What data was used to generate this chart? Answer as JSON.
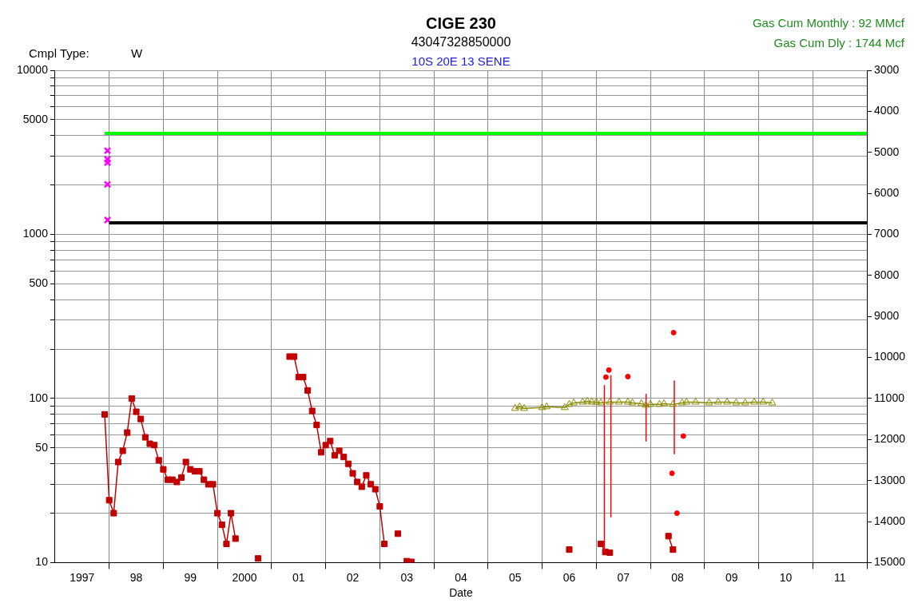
{
  "chart_data": {
    "type": "line",
    "title": "CIGE 230",
    "subtitle": "43047328850000",
    "xlabel": "Date",
    "annotations": [
      "10S 20E 13 SENE",
      "Cmpl Type:",
      "W",
      "Gas Cum Monthly : 92 MMcf",
      "Gas Cum Dly : 1744 Mcf"
    ],
    "xlim": [
      "1997",
      "2012"
    ],
    "xticks": [
      {
        "value": "1997-07",
        "label": "1997"
      },
      {
        "value": "1998",
        "label": null
      },
      {
        "value": "1998-07",
        "label": "98"
      },
      {
        "value": "1999",
        "label": null
      },
      {
        "value": "1999-07",
        "label": "99"
      },
      {
        "value": "2000",
        "label": null
      },
      {
        "value": "2000-07",
        "label": "2000"
      },
      {
        "value": "2001",
        "label": null
      },
      {
        "value": "2001-07",
        "label": "01"
      },
      {
        "value": "2002",
        "label": null
      },
      {
        "value": "2002-07",
        "label": "02"
      },
      {
        "value": "2003",
        "label": null
      },
      {
        "value": "2003-07",
        "label": "03"
      },
      {
        "value": "2004",
        "label": null
      },
      {
        "value": "2004-07",
        "label": "04"
      },
      {
        "value": "2005",
        "label": null
      },
      {
        "value": "2005-07",
        "label": "05"
      },
      {
        "value": "2006",
        "label": null
      },
      {
        "value": "2006-07",
        "label": "06"
      },
      {
        "value": "2007",
        "label": null
      },
      {
        "value": "2007-07",
        "label": "07"
      },
      {
        "value": "2008",
        "label": null
      },
      {
        "value": "2008-07",
        "label": "08"
      },
      {
        "value": "2009",
        "label": null
      },
      {
        "value": "2009-07",
        "label": "09"
      },
      {
        "value": "2010",
        "label": null
      },
      {
        "value": "2010-07",
        "label": "10"
      },
      {
        "value": "2011",
        "label": null
      },
      {
        "value": "2011-07",
        "label": "11"
      },
      {
        "value": "2012",
        "label": null
      }
    ],
    "ylim": [
      10,
      10000
    ],
    "yticks": [
      10,
      {
        "value": 20,
        "label": null
      },
      {
        "value": 30,
        "label": null
      },
      {
        "value": 40,
        "label": null
      },
      50,
      {
        "value": 60,
        "label": null
      },
      {
        "value": 70,
        "label": null
      },
      {
        "value": 80,
        "label": null
      },
      {
        "value": 90,
        "label": null
      },
      100,
      {
        "value": 200,
        "label": null
      },
      {
        "value": 300,
        "label": null
      },
      {
        "value": 400,
        "label": null
      },
      500,
      {
        "value": 600,
        "label": null
      },
      {
        "value": 700,
        "label": null
      },
      {
        "value": 800,
        "label": null
      },
      {
        "value": 900,
        "label": null
      },
      1000,
      {
        "value": 2000,
        "label": null
      },
      {
        "value": 3000,
        "label": null
      },
      {
        "value": 4000,
        "label": null
      },
      5000,
      {
        "value": 6000,
        "label": null
      },
      {
        "value": 7000,
        "label": null
      },
      {
        "value": 8000,
        "label": null
      },
      {
        "value": 9000,
        "label": null
      },
      10000
    ],
    "y2lim": [
      15000,
      3000
    ],
    "y2ticks": [
      3000,
      4000,
      5000,
      6000,
      7000,
      8000,
      9000,
      10000,
      11000,
      12000,
      13000,
      14000,
      15000
    ],
    "log": "y",
    "grid": true,
    "legend": false,
    "series": [
      {
        "type": "line",
        "axis": "y2",
        "marker": "none",
        "color": "#00ff00",
        "x": [
          "1997-12",
          "2012"
        ],
        "values": [
          4540,
          4540
        ]
      },
      {
        "type": "line",
        "axis": "y2",
        "marker": "none",
        "color": "#000000",
        "x": [
          "1998-01",
          "2012"
        ],
        "values": [
          6720,
          6720
        ]
      },
      {
        "type": "scatter",
        "axis": "y2",
        "marker": "cross",
        "color": "#ff00ff",
        "x": [
          "1997-12-20",
          "1997-12-20",
          "1997-12-20",
          "1997-12-20",
          "1997-12-20"
        ],
        "values": [
          4960,
          5170,
          5250,
          5780,
          6650
        ]
      },
      {
        "type": "line",
        "marker": "triangle",
        "color": "#8b8b00",
        "x": [
          "2005-07",
          "2005-08",
          "2005-09",
          "2006-01",
          "2006-02",
          "2006-06",
          "2006-07",
          "2006-08",
          "2006-10",
          "2006-11",
          "2006-12",
          "2007-01",
          "2007-02",
          "2007-04",
          "2007-06",
          "2007-08",
          "2007-09",
          "2007-11",
          "2007-12",
          "2008-01",
          "2008-03",
          "2008-04",
          "2008-06",
          "2008-08",
          "2008-09",
          "2008-11",
          "2009-02",
          "2009-04",
          "2009-06",
          "2009-08",
          "2009-10",
          "2009-12",
          "2010-02",
          "2010-04"
        ],
        "values": [
          87,
          89,
          87,
          88,
          89,
          88,
          92,
          94,
          95,
          96,
          95,
          95,
          94,
          95,
          95,
          95,
          94,
          93,
          91,
          92,
          92,
          93,
          92,
          94,
          95,
          95,
          94,
          95,
          95,
          94,
          94,
          95,
          95,
          94
        ]
      },
      {
        "type": "line",
        "marker": "none",
        "color": "#ff0000",
        "x": [
          "2007-02-25",
          "2007-02-25",
          "2007-03-20",
          "2007-04-08",
          "2007-04-08",
          "2007-08-01",
          "2007-12-02",
          "2007-12-02",
          "2008-03-01",
          "2008-06-10",
          "2008-06-10"
        ],
        "values": [
          120,
          11.6,
          null,
          138,
          19,
          null,
          106,
          55,
          null,
          128,
          46
        ]
      },
      {
        "type": "scatter",
        "marker": "circle",
        "color": "#ff0000",
        "x": [
          "2007-03-05",
          "2007-03-25",
          "2007-08-01",
          "2008-06-05",
          "2008-08-10",
          "2008-05-25",
          "2008-06-28"
        ],
        "values": [
          135,
          149,
          136,
          252,
          59,
          35,
          20
        ]
      },
      {
        "type": "line",
        "marker": "square",
        "color": "#c00000",
        "x": [
          "1997-12",
          "1998-01",
          "1998-02",
          "1998-03",
          "1998-04",
          "1998-05",
          "1998-06",
          "1998-07",
          "1998-08",
          "1998-09",
          "1998-10",
          "1998-11",
          "1998-12",
          "1999-01",
          "1999-02",
          "1999-03",
          "1999-04",
          "1999-05",
          "1999-06",
          "1999-07",
          "1999-08",
          "1999-09",
          "1999-10",
          "1999-11",
          "1999-12",
          "2000-01",
          "2000-02",
          "2000-03",
          "2000-04",
          "2000-05",
          "2000-07",
          "2000-10",
          "2001-01",
          "2001-05",
          "2001-06",
          "2001-07",
          "2001-08",
          "2001-09",
          "2001-10",
          "2001-11",
          "2001-12",
          "2002-01",
          "2002-02",
          "2002-03",
          "2002-04",
          "2002-05",
          "2002-06",
          "2002-07",
          "2002-08",
          "2002-09",
          "2002-10",
          "2002-11",
          "2002-12",
          "2003-01",
          "2003-02",
          "2003-04",
          "2003-05",
          "2003-06",
          "2003-07",
          "2003-08",
          "2005-01",
          "2006-07",
          "2006-10",
          "2007-02",
          "2007-03",
          "2007-04",
          "2007-10",
          "2008-05",
          "2008-06"
        ],
        "values": [
          80,
          24,
          20,
          41,
          48,
          62,
          100,
          83,
          75,
          58,
          53,
          52,
          42,
          37,
          32,
          32,
          31,
          33,
          41,
          37,
          36,
          36,
          32,
          30,
          30,
          20,
          17,
          13,
          20,
          14,
          null,
          10.6,
          null,
          180,
          180,
          135,
          135,
          112,
          84,
          69,
          47,
          52,
          55,
          45,
          48,
          44,
          40,
          35,
          31,
          29,
          34,
          30,
          28,
          22,
          13,
          null,
          15,
          null,
          10.2,
          10.1,
          null,
          12,
          null,
          13,
          11.6,
          11.5,
          null,
          14.5,
          12
        ]
      }
    ]
  }
}
